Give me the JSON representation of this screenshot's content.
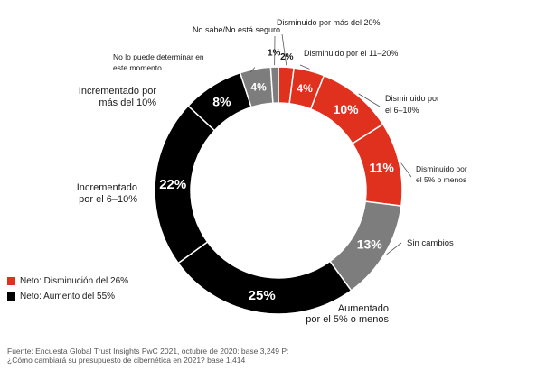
{
  "chart_data": {
    "type": "pie",
    "categories": [
      "Disminuido por más del 20%",
      "Disminuido por el 11–20%",
      "Disminuido por el 6–10%",
      "Disminuido por el 5% o menos",
      "Sin cambios",
      "Aumentado por el 5% o menos",
      "Incrementado por el 6–10%",
      "Incrementado por más del 10%",
      "No lo puede determinar en este momento",
      "No sabe/No está seguro"
    ],
    "values": [
      2,
      4,
      10,
      11,
      13,
      25,
      22,
      8,
      4,
      1
    ],
    "value_labels": [
      "2%",
      "4%",
      "10%",
      "11%",
      "13%",
      "25%",
      "22%",
      "8%",
      "4%",
      "1%"
    ],
    "colors": [
      "#e0301e",
      "#e0301e",
      "#e0301e",
      "#e0301e",
      "#7d7d7d",
      "#000000",
      "#000000",
      "#000000",
      "#7d7d7d",
      "#7d7d7d"
    ],
    "label_colors": [
      "#1a1a1a",
      "#ffffff",
      "#ffffff",
      "#ffffff",
      "#ffffff",
      "#ffffff",
      "#ffffff",
      "#ffffff",
      "#ffffff",
      "#1a1a1a"
    ],
    "legend": [
      {
        "label": "Neto: Disminución del 26%",
        "color": "#e0301e"
      },
      {
        "label": "Neto: Aumento del 55%",
        "color": "#000000"
      }
    ]
  },
  "source": [
    "Fuente: Encuesta Global Trust Insights PwC 2021, octubre de 2020: base 3,249 P:",
    "¿Cómo cambiará su presupuesto de cibernética en 2021? base 1,414"
  ]
}
